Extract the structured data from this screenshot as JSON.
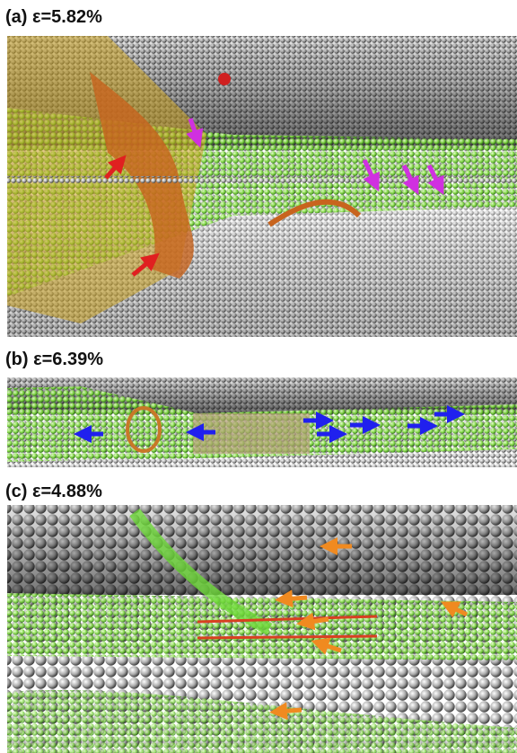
{
  "panels": [
    {
      "label": "(a) ε=5.82%"
    },
    {
      "label": "(b) ε=6.39%"
    },
    {
      "label": "(c) ε=4.88%"
    }
  ]
}
